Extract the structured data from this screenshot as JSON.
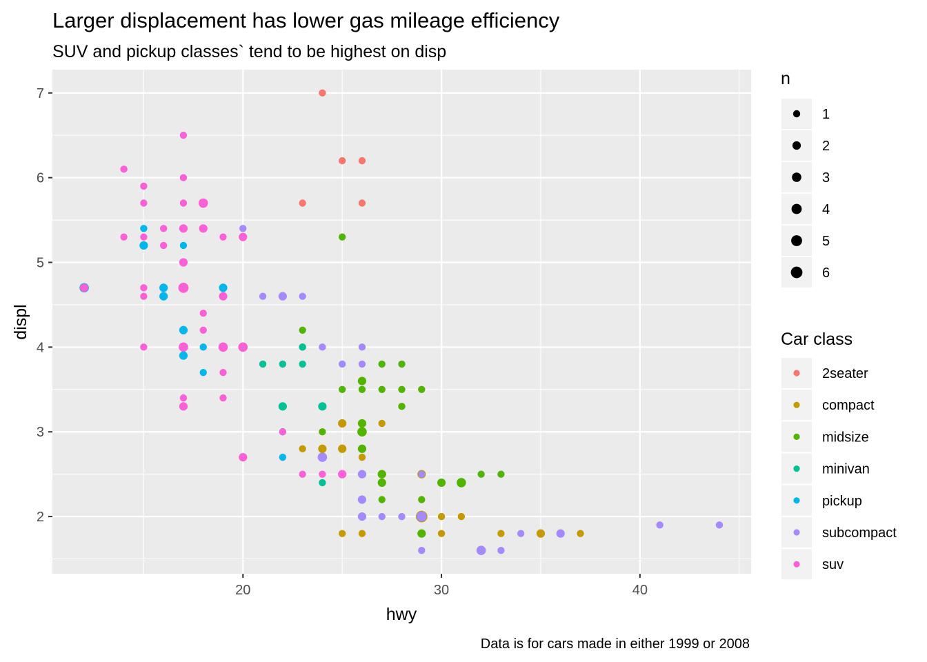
{
  "chart_data": {
    "type": "scatter",
    "title": "Larger displacement has lower gas mileage efficiency",
    "subtitle": "SUV and pickup classes` tend to be highest on disp",
    "caption": "Data is for cars made in either 1999 or 2008",
    "xlabel": "hwy",
    "ylabel": "displ",
    "xlim": [
      10.4,
      45.6
    ],
    "ylim": [
      1.325,
      7.275
    ],
    "x_ticks": [
      20,
      30,
      40
    ],
    "y_ticks": [
      2,
      3,
      4,
      5,
      6,
      7
    ],
    "grid": true,
    "legend_placement": "right",
    "size_legend": {
      "title": "n",
      "values": [
        1,
        2,
        3,
        4,
        5,
        6
      ]
    },
    "color_legend": {
      "title": "Car class",
      "classes": [
        "2seater",
        "compact",
        "midsize",
        "minivan",
        "pickup",
        "subcompact",
        "suv"
      ],
      "colors": [
        "#F8766D",
        "#C49A00",
        "#53B400",
        "#00C094",
        "#00B6EB",
        "#A58AFF",
        "#FB61D7"
      ]
    },
    "points": [
      {
        "x": 24,
        "y": 7.0,
        "class": "2seater",
        "n": 1
      },
      {
        "x": 25,
        "y": 6.2,
        "class": "2seater",
        "n": 1
      },
      {
        "x": 26,
        "y": 6.2,
        "class": "2seater",
        "n": 1
      },
      {
        "x": 23,
        "y": 5.7,
        "class": "2seater",
        "n": 1
      },
      {
        "x": 26,
        "y": 5.7,
        "class": "2seater",
        "n": 1
      },
      {
        "x": 29,
        "y": 2.0,
        "class": "compact",
        "n": 6
      },
      {
        "x": 25,
        "y": 3.1,
        "class": "compact",
        "n": 2
      },
      {
        "x": 24,
        "y": 2.8,
        "class": "compact",
        "n": 2
      },
      {
        "x": 25,
        "y": 2.8,
        "class": "compact",
        "n": 2
      },
      {
        "x": 27,
        "y": 2.5,
        "class": "compact",
        "n": 2
      },
      {
        "x": 29,
        "y": 2.5,
        "class": "compact",
        "n": 2
      },
      {
        "x": 35,
        "y": 1.8,
        "class": "compact",
        "n": 2
      },
      {
        "x": 27,
        "y": 3.1,
        "class": "compact",
        "n": 1
      },
      {
        "x": 23,
        "y": 2.8,
        "class": "compact",
        "n": 1
      },
      {
        "x": 24,
        "y": 2.8,
        "class": "compact",
        "n": 1
      },
      {
        "x": 30,
        "y": 2.0,
        "class": "compact",
        "n": 1
      },
      {
        "x": 31,
        "y": 2.0,
        "class": "compact",
        "n": 1
      },
      {
        "x": 25,
        "y": 1.8,
        "class": "compact",
        "n": 1
      },
      {
        "x": 26,
        "y": 1.8,
        "class": "compact",
        "n": 1
      },
      {
        "x": 30,
        "y": 1.8,
        "class": "compact",
        "n": 1
      },
      {
        "x": 33,
        "y": 1.8,
        "class": "compact",
        "n": 1
      },
      {
        "x": 37,
        "y": 1.8,
        "class": "compact",
        "n": 1
      },
      {
        "x": 26,
        "y": 2.7,
        "class": "compact",
        "n": 1
      },
      {
        "x": 26,
        "y": 3.0,
        "class": "midsize",
        "n": 3
      },
      {
        "x": 31,
        "y": 2.4,
        "class": "midsize",
        "n": 3
      },
      {
        "x": 26,
        "y": 3.6,
        "class": "midsize",
        "n": 2
      },
      {
        "x": 26,
        "y": 3.1,
        "class": "midsize",
        "n": 2
      },
      {
        "x": 26,
        "y": 2.8,
        "class": "midsize",
        "n": 2
      },
      {
        "x": 27,
        "y": 2.5,
        "class": "midsize",
        "n": 2
      },
      {
        "x": 27,
        "y": 2.4,
        "class": "midsize",
        "n": 2
      },
      {
        "x": 30,
        "y": 2.4,
        "class": "midsize",
        "n": 2
      },
      {
        "x": 29,
        "y": 1.8,
        "class": "midsize",
        "n": 2
      },
      {
        "x": 25,
        "y": 5.3,
        "class": "midsize",
        "n": 1
      },
      {
        "x": 23,
        "y": 4.2,
        "class": "midsize",
        "n": 1
      },
      {
        "x": 23,
        "y": 4.0,
        "class": "midsize",
        "n": 1
      },
      {
        "x": 27,
        "y": 3.8,
        "class": "midsize",
        "n": 1
      },
      {
        "x": 28,
        "y": 3.8,
        "class": "midsize",
        "n": 1
      },
      {
        "x": 25,
        "y": 3.5,
        "class": "midsize",
        "n": 1
      },
      {
        "x": 26,
        "y": 3.5,
        "class": "midsize",
        "n": 1
      },
      {
        "x": 27,
        "y": 3.5,
        "class": "midsize",
        "n": 1
      },
      {
        "x": 28,
        "y": 3.5,
        "class": "midsize",
        "n": 1
      },
      {
        "x": 29,
        "y": 3.5,
        "class": "midsize",
        "n": 1
      },
      {
        "x": 28,
        "y": 3.3,
        "class": "midsize",
        "n": 1
      },
      {
        "x": 24,
        "y": 3.0,
        "class": "midsize",
        "n": 1
      },
      {
        "x": 32,
        "y": 2.5,
        "class": "midsize",
        "n": 1
      },
      {
        "x": 33,
        "y": 2.5,
        "class": "midsize",
        "n": 1
      },
      {
        "x": 27,
        "y": 2.2,
        "class": "midsize",
        "n": 1
      },
      {
        "x": 29,
        "y": 2.2,
        "class": "midsize",
        "n": 1
      },
      {
        "x": 22,
        "y": 3.3,
        "class": "minivan",
        "n": 2
      },
      {
        "x": 24,
        "y": 3.3,
        "class": "minivan",
        "n": 2
      },
      {
        "x": 21,
        "y": 3.8,
        "class": "minivan",
        "n": 1
      },
      {
        "x": 22,
        "y": 3.8,
        "class": "minivan",
        "n": 1
      },
      {
        "x": 23,
        "y": 3.8,
        "class": "minivan",
        "n": 1
      },
      {
        "x": 23,
        "y": 4.0,
        "class": "minivan",
        "n": 1
      },
      {
        "x": 24,
        "y": 2.4,
        "class": "minivan",
        "n": 1
      },
      {
        "x": 22,
        "y": 3.0,
        "class": "minivan",
        "n": 1
      },
      {
        "x": 12,
        "y": 4.7,
        "class": "pickup",
        "n": 3
      },
      {
        "x": 16,
        "y": 4.7,
        "class": "pickup",
        "n": 2
      },
      {
        "x": 19,
        "y": 4.7,
        "class": "pickup",
        "n": 2
      },
      {
        "x": 16,
        "y": 4.6,
        "class": "pickup",
        "n": 2
      },
      {
        "x": 17,
        "y": 4.2,
        "class": "pickup",
        "n": 2
      },
      {
        "x": 15,
        "y": 5.2,
        "class": "pickup",
        "n": 2
      },
      {
        "x": 17,
        "y": 3.9,
        "class": "pickup",
        "n": 2
      },
      {
        "x": 15,
        "y": 5.4,
        "class": "pickup",
        "n": 1
      },
      {
        "x": 17,
        "y": 5.2,
        "class": "pickup",
        "n": 1
      },
      {
        "x": 18,
        "y": 4.0,
        "class": "pickup",
        "n": 1
      },
      {
        "x": 18,
        "y": 3.7,
        "class": "pickup",
        "n": 1
      },
      {
        "x": 22,
        "y": 2.7,
        "class": "pickup",
        "n": 1
      },
      {
        "x": 29,
        "y": 2.0,
        "class": "subcompact",
        "n": 4
      },
      {
        "x": 24,
        "y": 2.7,
        "class": "subcompact",
        "n": 3
      },
      {
        "x": 32,
        "y": 1.6,
        "class": "subcompact",
        "n": 3
      },
      {
        "x": 22,
        "y": 4.6,
        "class": "subcompact",
        "n": 2
      },
      {
        "x": 26,
        "y": 2.5,
        "class": "subcompact",
        "n": 2
      },
      {
        "x": 26,
        "y": 2.2,
        "class": "subcompact",
        "n": 2
      },
      {
        "x": 26,
        "y": 2.0,
        "class": "subcompact",
        "n": 2
      },
      {
        "x": 36,
        "y": 1.8,
        "class": "subcompact",
        "n": 2
      },
      {
        "x": 20,
        "y": 5.4,
        "class": "subcompact",
        "n": 1
      },
      {
        "x": 21,
        "y": 4.6,
        "class": "subcompact",
        "n": 1
      },
      {
        "x": 23,
        "y": 4.6,
        "class": "subcompact",
        "n": 1
      },
      {
        "x": 24,
        "y": 4.0,
        "class": "subcompact",
        "n": 1
      },
      {
        "x": 26,
        "y": 4.0,
        "class": "subcompact",
        "n": 1
      },
      {
        "x": 25,
        "y": 3.8,
        "class": "subcompact",
        "n": 1
      },
      {
        "x": 26,
        "y": 3.8,
        "class": "subcompact",
        "n": 1
      },
      {
        "x": 29,
        "y": 2.5,
        "class": "subcompact",
        "n": 1
      },
      {
        "x": 27,
        "y": 2.0,
        "class": "subcompact",
        "n": 1
      },
      {
        "x": 28,
        "y": 2.0,
        "class": "subcompact",
        "n": 1
      },
      {
        "x": 34,
        "y": 1.8,
        "class": "subcompact",
        "n": 1
      },
      {
        "x": 29,
        "y": 1.6,
        "class": "subcompact",
        "n": 1
      },
      {
        "x": 33,
        "y": 1.6,
        "class": "subcompact",
        "n": 1
      },
      {
        "x": 41,
        "y": 1.9,
        "class": "subcompact",
        "n": 1
      },
      {
        "x": 44,
        "y": 1.9,
        "class": "subcompact",
        "n": 1
      },
      {
        "x": 17,
        "y": 4.7,
        "class": "suv",
        "n": 4
      },
      {
        "x": 18,
        "y": 5.7,
        "class": "suv",
        "n": 3
      },
      {
        "x": 17,
        "y": 4.0,
        "class": "suv",
        "n": 3
      },
      {
        "x": 19,
        "y": 4.0,
        "class": "suv",
        "n": 3
      },
      {
        "x": 20,
        "y": 4.0,
        "class": "suv",
        "n": 3
      },
      {
        "x": 12,
        "y": 4.7,
        "class": "suv",
        "n": 2
      },
      {
        "x": 17,
        "y": 5.4,
        "class": "suv",
        "n": 2
      },
      {
        "x": 18,
        "y": 5.4,
        "class": "suv",
        "n": 2
      },
      {
        "x": 20,
        "y": 5.3,
        "class": "suv",
        "n": 2
      },
      {
        "x": 17,
        "y": 5.0,
        "class": "suv",
        "n": 2
      },
      {
        "x": 19,
        "y": 4.6,
        "class": "suv",
        "n": 2
      },
      {
        "x": 17,
        "y": 3.3,
        "class": "suv",
        "n": 2
      },
      {
        "x": 20,
        "y": 2.7,
        "class": "suv",
        "n": 2
      },
      {
        "x": 25,
        "y": 2.5,
        "class": "suv",
        "n": 2
      },
      {
        "x": 17,
        "y": 6.5,
        "class": "suv",
        "n": 1
      },
      {
        "x": 14,
        "y": 6.1,
        "class": "suv",
        "n": 1
      },
      {
        "x": 17,
        "y": 6.0,
        "class": "suv",
        "n": 1
      },
      {
        "x": 15,
        "y": 5.9,
        "class": "suv",
        "n": 1
      },
      {
        "x": 15,
        "y": 5.7,
        "class": "suv",
        "n": 1
      },
      {
        "x": 17,
        "y": 5.7,
        "class": "suv",
        "n": 1
      },
      {
        "x": 16,
        "y": 5.4,
        "class": "suv",
        "n": 1
      },
      {
        "x": 14,
        "y": 5.3,
        "class": "suv",
        "n": 1
      },
      {
        "x": 15,
        "y": 5.3,
        "class": "suv",
        "n": 1
      },
      {
        "x": 19,
        "y": 5.3,
        "class": "suv",
        "n": 1
      },
      {
        "x": 16,
        "y": 5.2,
        "class": "suv",
        "n": 1
      },
      {
        "x": 15,
        "y": 4.7,
        "class": "suv",
        "n": 1
      },
      {
        "x": 15,
        "y": 4.6,
        "class": "suv",
        "n": 1
      },
      {
        "x": 18,
        "y": 4.4,
        "class": "suv",
        "n": 1
      },
      {
        "x": 18,
        "y": 4.2,
        "class": "suv",
        "n": 1
      },
      {
        "x": 15,
        "y": 4.0,
        "class": "suv",
        "n": 1
      },
      {
        "x": 19,
        "y": 3.7,
        "class": "suv",
        "n": 1
      },
      {
        "x": 17,
        "y": 3.4,
        "class": "suv",
        "n": 1
      },
      {
        "x": 19,
        "y": 3.4,
        "class": "suv",
        "n": 1
      },
      {
        "x": 22,
        "y": 3.0,
        "class": "suv",
        "n": 1
      },
      {
        "x": 23,
        "y": 2.5,
        "class": "suv",
        "n": 1
      },
      {
        "x": 24,
        "y": 2.5,
        "class": "suv",
        "n": 1
      }
    ]
  }
}
